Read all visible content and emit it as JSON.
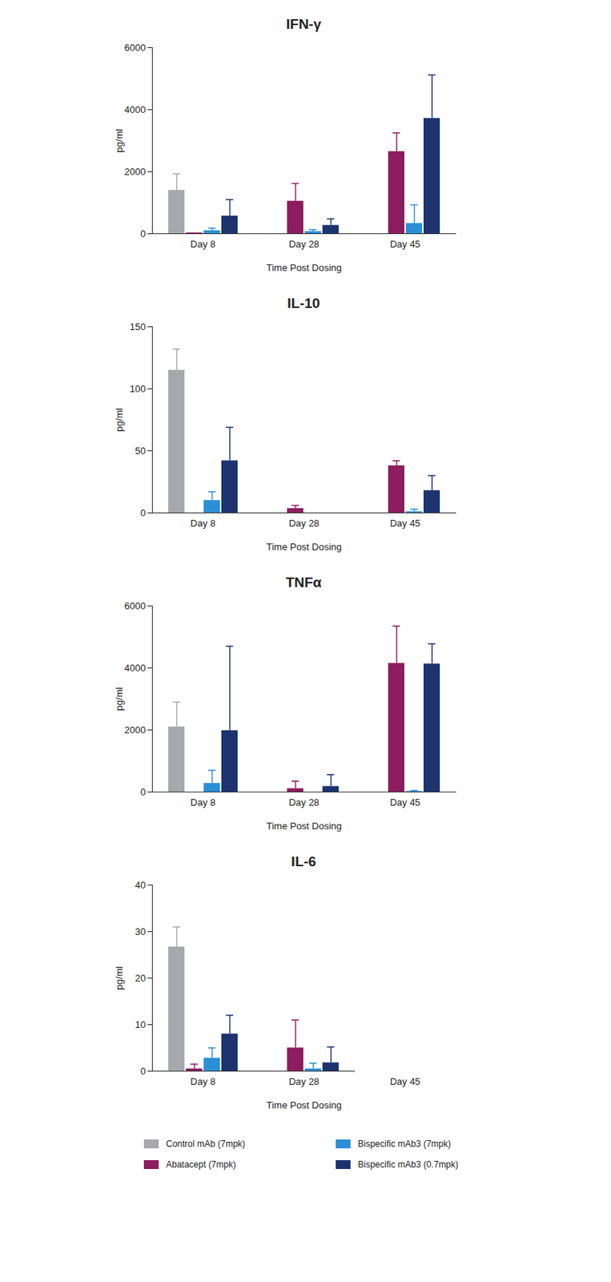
{
  "chart_data": [
    {
      "type": "bar",
      "title": "IFN-γ",
      "x_label": "Time Post Dosing",
      "y_label": "pg/ml",
      "categories": [
        "Day 8",
        "Day 28",
        "Day 45"
      ],
      "ylim": [
        0,
        6000
      ],
      "yticks": [
        0,
        2000,
        4000,
        6000
      ],
      "grid": false,
      "legend": "bottom",
      "series": [
        {
          "name": "Control mAb (7mpk)",
          "color": "#a5a9ad",
          "values": [
            1400,
            null,
            null
          ],
          "errors": [
            530,
            null,
            null
          ]
        },
        {
          "name": "Abatacept (7mpk)",
          "color": "#8c1d5f",
          "values": [
            30,
            1050,
            2650
          ],
          "errors": [
            null,
            570,
            600
          ]
        },
        {
          "name": "Bispecific mAb3 (7mpk)",
          "color": "#2b8fd8",
          "values": [
            100,
            70,
            330
          ],
          "errors": [
            80,
            60,
            600
          ]
        },
        {
          "name": "Bispecific mAb3 (0.7mpk)",
          "color": "#1c3370",
          "values": [
            570,
            270,
            3720
          ],
          "errors": [
            530,
            210,
            1400
          ]
        }
      ]
    },
    {
      "type": "bar",
      "title": "IL-10",
      "x_label": "Time Post Dosing",
      "y_label": "pg/ml",
      "categories": [
        "Day 8",
        "Day 28",
        "Day 45"
      ],
      "ylim": [
        0,
        150
      ],
      "yticks": [
        0,
        50,
        100,
        150
      ],
      "grid": false,
      "legend": "bottom",
      "series": [
        {
          "name": "Control mAb (7mpk)",
          "color": "#a5a9ad",
          "values": [
            115,
            null,
            null
          ],
          "errors": [
            17,
            null,
            null
          ]
        },
        {
          "name": "Abatacept (7mpk)",
          "color": "#8c1d5f",
          "values": [
            0,
            3.5,
            38
          ],
          "errors": [
            null,
            2.5,
            4
          ]
        },
        {
          "name": "Bispecific mAb3 (7mpk)",
          "color": "#2b8fd8",
          "values": [
            10,
            0,
            1
          ],
          "errors": [
            7,
            null,
            2
          ]
        },
        {
          "name": "Bispecific mAb3 (0.7mpk)",
          "color": "#1c3370",
          "values": [
            42,
            0,
            18
          ],
          "errors": [
            27,
            null,
            12
          ]
        }
      ]
    },
    {
      "type": "bar",
      "title": "TNFα",
      "x_label": "Time Post Dosing",
      "y_label": "pg/ml",
      "categories": [
        "Day 8",
        "Day 28",
        "Day 45"
      ],
      "ylim": [
        0,
        6000
      ],
      "yticks": [
        0,
        2000,
        4000,
        6000
      ],
      "grid": false,
      "legend": "bottom",
      "series": [
        {
          "name": "Control mAb (7mpk)",
          "color": "#a5a9ad",
          "values": [
            2100,
            null,
            null
          ],
          "errors": [
            800,
            null,
            null
          ]
        },
        {
          "name": "Abatacept (7mpk)",
          "color": "#8c1d5f",
          "values": [
            0,
            110,
            4150
          ],
          "errors": [
            null,
            240,
            1200
          ]
        },
        {
          "name": "Bispecific mAb3 (7mpk)",
          "color": "#2b8fd8",
          "values": [
            280,
            0,
            20
          ],
          "errors": [
            420,
            null,
            30
          ]
        },
        {
          "name": "Bispecific mAb3 (0.7mpk)",
          "color": "#1c3370",
          "values": [
            1980,
            180,
            4130
          ],
          "errors": [
            2720,
            380,
            650
          ]
        }
      ]
    },
    {
      "type": "bar",
      "title": "IL-6",
      "x_label": "Time Post Dosing",
      "y_label": "pg/ml",
      "categories": [
        "Day 8",
        "Day 28",
        "Day 45"
      ],
      "ylim": [
        0,
        40
      ],
      "yticks": [
        0,
        10,
        20,
        30,
        40
      ],
      "grid": false,
      "legend": "bottom",
      "series": [
        {
          "name": "Control mAb (7mpk)",
          "color": "#a5a9ad",
          "values": [
            26.7,
            null,
            null
          ],
          "errors": [
            4.3,
            null,
            null
          ]
        },
        {
          "name": "Abatacept (7mpk)",
          "color": "#8c1d5f",
          "values": [
            0.5,
            5,
            null
          ],
          "errors": [
            1,
            6,
            null
          ]
        },
        {
          "name": "Bispecific mAb3 (7mpk)",
          "color": "#2b8fd8",
          "values": [
            2.8,
            0.5,
            null
          ],
          "errors": [
            2.2,
            1.2,
            null
          ]
        },
        {
          "name": "Bispecific mAb3 (0.7mpk)",
          "color": "#1c3370",
          "values": [
            8,
            1.8,
            null
          ],
          "errors": [
            4,
            3.4,
            null
          ]
        }
      ]
    }
  ]
}
